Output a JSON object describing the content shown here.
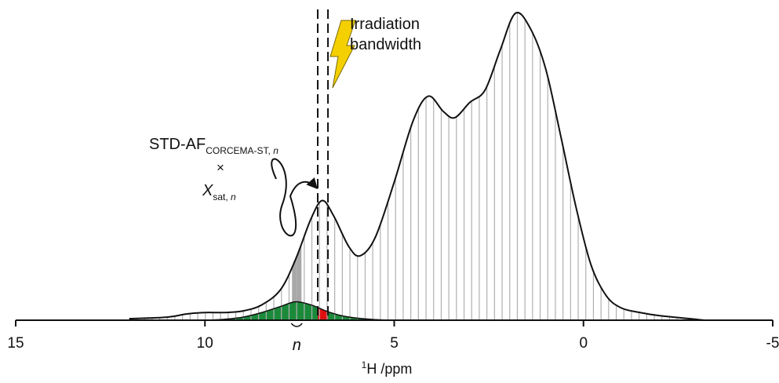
{
  "chart_data": {
    "type": "line",
    "xlabel_sup": "1",
    "xlabel": "H /ppm",
    "xlim": [
      15,
      -5
    ],
    "xticks": [
      15,
      10,
      5,
      0,
      -5
    ],
    "ylim": [
      0,
      100
    ],
    "series": [
      {
        "color": "#111111",
        "x": [
          12,
          11,
          10.5,
          10,
          9.5,
          9,
          8.5,
          8,
          7.6,
          7.2,
          6.9,
          6.6,
          6.2,
          5.9,
          5.5,
          5.0,
          4.5,
          4.1,
          3.7,
          3.4,
          3.0,
          2.6,
          2.2,
          1.8,
          1.4,
          1.0,
          0.6,
          0.2,
          -0.2,
          -0.6,
          -1.0,
          -1.5,
          -2,
          -2.8,
          -3.2
        ],
        "values": [
          0.5,
          1,
          2,
          2.5,
          2.5,
          3,
          5,
          10,
          20,
          33,
          39,
          34,
          24,
          21,
          27,
          45,
          65,
          73,
          68,
          66,
          71,
          75,
          88,
          100,
          95,
          82,
          60,
          37,
          18,
          8,
          4,
          2.5,
          1.5,
          0.5,
          0
        ]
      },
      {
        "color": "#1a8a3a",
        "x": [
          10,
          9.5,
          9,
          8.5,
          8,
          7.6,
          7.2,
          6.8,
          6.4,
          6,
          5.5,
          5
        ],
        "values": [
          0,
          0.3,
          1,
          2.5,
          4.5,
          6,
          5,
          3,
          1.5,
          0.7,
          0.2,
          0
        ]
      }
    ],
    "stripe_color": "#b0b0b0",
    "highlight": [
      7.7,
      7.45
    ],
    "highlight_color": "#a8a8a8",
    "irradiation_band": [
      7.02,
      6.75
    ],
    "band_color": "#e01010",
    "annotations": {
      "irradiation_1": "Irradiation",
      "irradiation_2": "bandwidth",
      "std_af": "STD-AF",
      "std_af_sub": "CORCEMA-ST, ",
      "std_af_sub_n": "n",
      "times": "×",
      "xsat": "X",
      "xsat_sub": "sat, ",
      "xsat_sub_n": "n",
      "n_label": "n"
    }
  }
}
